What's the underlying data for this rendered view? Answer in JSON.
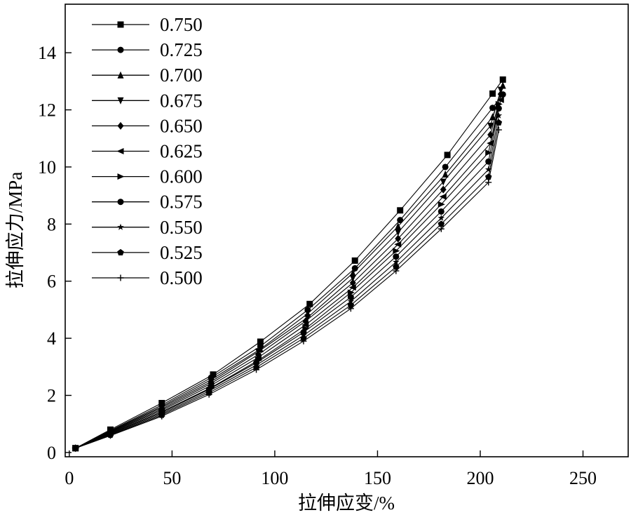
{
  "chart_data": {
    "type": "line",
    "title": "",
    "xlabel": "拉伸应变/%",
    "ylabel": "拉伸应力/MPa",
    "xlim": [
      -2,
      272
    ],
    "ylim": [
      -0.15,
      15.7
    ],
    "xticks": [
      0,
      50,
      100,
      150,
      200,
      250
    ],
    "yticks": [
      0,
      2,
      4,
      6,
      8,
      10,
      12,
      14
    ],
    "grid": false,
    "legend_position": "top-left",
    "line_color": "#000000",
    "series": [
      {
        "name": "0.750",
        "marker": "square",
        "x": [
          3,
          20,
          45,
          70,
          93,
          117,
          139,
          161,
          184,
          206,
          211
        ],
        "y": [
          0.15,
          0.8,
          1.73,
          2.73,
          3.88,
          5.2,
          6.72,
          8.48,
          10.42,
          12.57,
          13.06
        ]
      },
      {
        "name": "0.725",
        "marker": "circle",
        "x": [
          3,
          20,
          45,
          69,
          93,
          116,
          139,
          161,
          183,
          206,
          211
        ],
        "y": [
          0.15,
          0.77,
          1.66,
          2.62,
          3.72,
          4.99,
          6.45,
          8.14,
          10.0,
          12.07,
          12.54
        ]
      },
      {
        "name": "0.700",
        "marker": "triangle-up",
        "x": [
          3,
          20,
          45,
          69,
          93,
          116,
          138,
          160,
          183,
          206,
          211
        ],
        "y": [
          0.15,
          0.75,
          1.61,
          2.55,
          3.62,
          4.86,
          6.28,
          7.92,
          9.74,
          11.75,
          12.85
        ]
      },
      {
        "name": "0.675",
        "marker": "triangle-down",
        "x": [
          3,
          20,
          45,
          69,
          92,
          116,
          138,
          160,
          182,
          205,
          210
        ],
        "y": [
          0.15,
          0.73,
          1.57,
          2.48,
          3.53,
          4.73,
          6.11,
          7.71,
          9.48,
          11.44,
          12.7
        ]
      },
      {
        "name": "0.650",
        "marker": "diamond",
        "x": [
          3,
          20,
          45,
          69,
          92,
          115,
          138,
          160,
          182,
          205,
          210
        ],
        "y": [
          0.15,
          0.71,
          1.52,
          2.42,
          3.43,
          4.6,
          5.94,
          7.49,
          9.21,
          11.13,
          12.55
        ]
      },
      {
        "name": "0.625",
        "marker": "triangle-left",
        "x": [
          3,
          20,
          45,
          69,
          92,
          115,
          138,
          160,
          182,
          205,
          210
        ],
        "y": [
          0.15,
          0.69,
          1.48,
          2.35,
          3.33,
          4.47,
          5.78,
          7.29,
          8.96,
          10.83,
          12.35
        ]
      },
      {
        "name": "0.600",
        "marker": "triangle-right",
        "x": [
          3,
          20,
          45,
          69,
          92,
          115,
          137,
          159,
          181,
          204,
          209
        ],
        "y": [
          0.15,
          0.67,
          1.43,
          2.27,
          3.23,
          4.34,
          5.6,
          7.06,
          8.69,
          10.5,
          12.2
        ]
      },
      {
        "name": "0.575",
        "marker": "octagon",
        "x": [
          3,
          20,
          45,
          68,
          91,
          114,
          137,
          159,
          181,
          204,
          209
        ],
        "y": [
          0.15,
          0.65,
          1.39,
          2.21,
          3.14,
          4.21,
          5.44,
          6.86,
          8.44,
          10.19,
          12.05
        ]
      },
      {
        "name": "0.550",
        "marker": "star",
        "x": [
          3,
          20,
          45,
          68,
          91,
          114,
          137,
          159,
          181,
          204,
          209
        ],
        "y": [
          0.15,
          0.63,
          1.35,
          2.15,
          3.06,
          4.1,
          5.29,
          6.67,
          8.21,
          9.91,
          11.8
        ]
      },
      {
        "name": "0.525",
        "marker": "pentagon",
        "x": [
          3,
          20,
          45,
          68,
          91,
          114,
          137,
          159,
          181,
          204,
          209
        ],
        "y": [
          0.15,
          0.61,
          1.31,
          2.09,
          2.98,
          4.0,
          5.16,
          6.5,
          8.0,
          9.65,
          11.55
        ]
      },
      {
        "name": "0.500",
        "marker": "plus",
        "x": [
          3,
          20,
          45,
          68,
          91,
          114,
          137,
          159,
          181,
          204,
          209
        ],
        "y": [
          0.15,
          0.59,
          1.27,
          2.03,
          2.9,
          3.9,
          5.04,
          6.36,
          7.83,
          9.46,
          11.3
        ]
      }
    ]
  }
}
